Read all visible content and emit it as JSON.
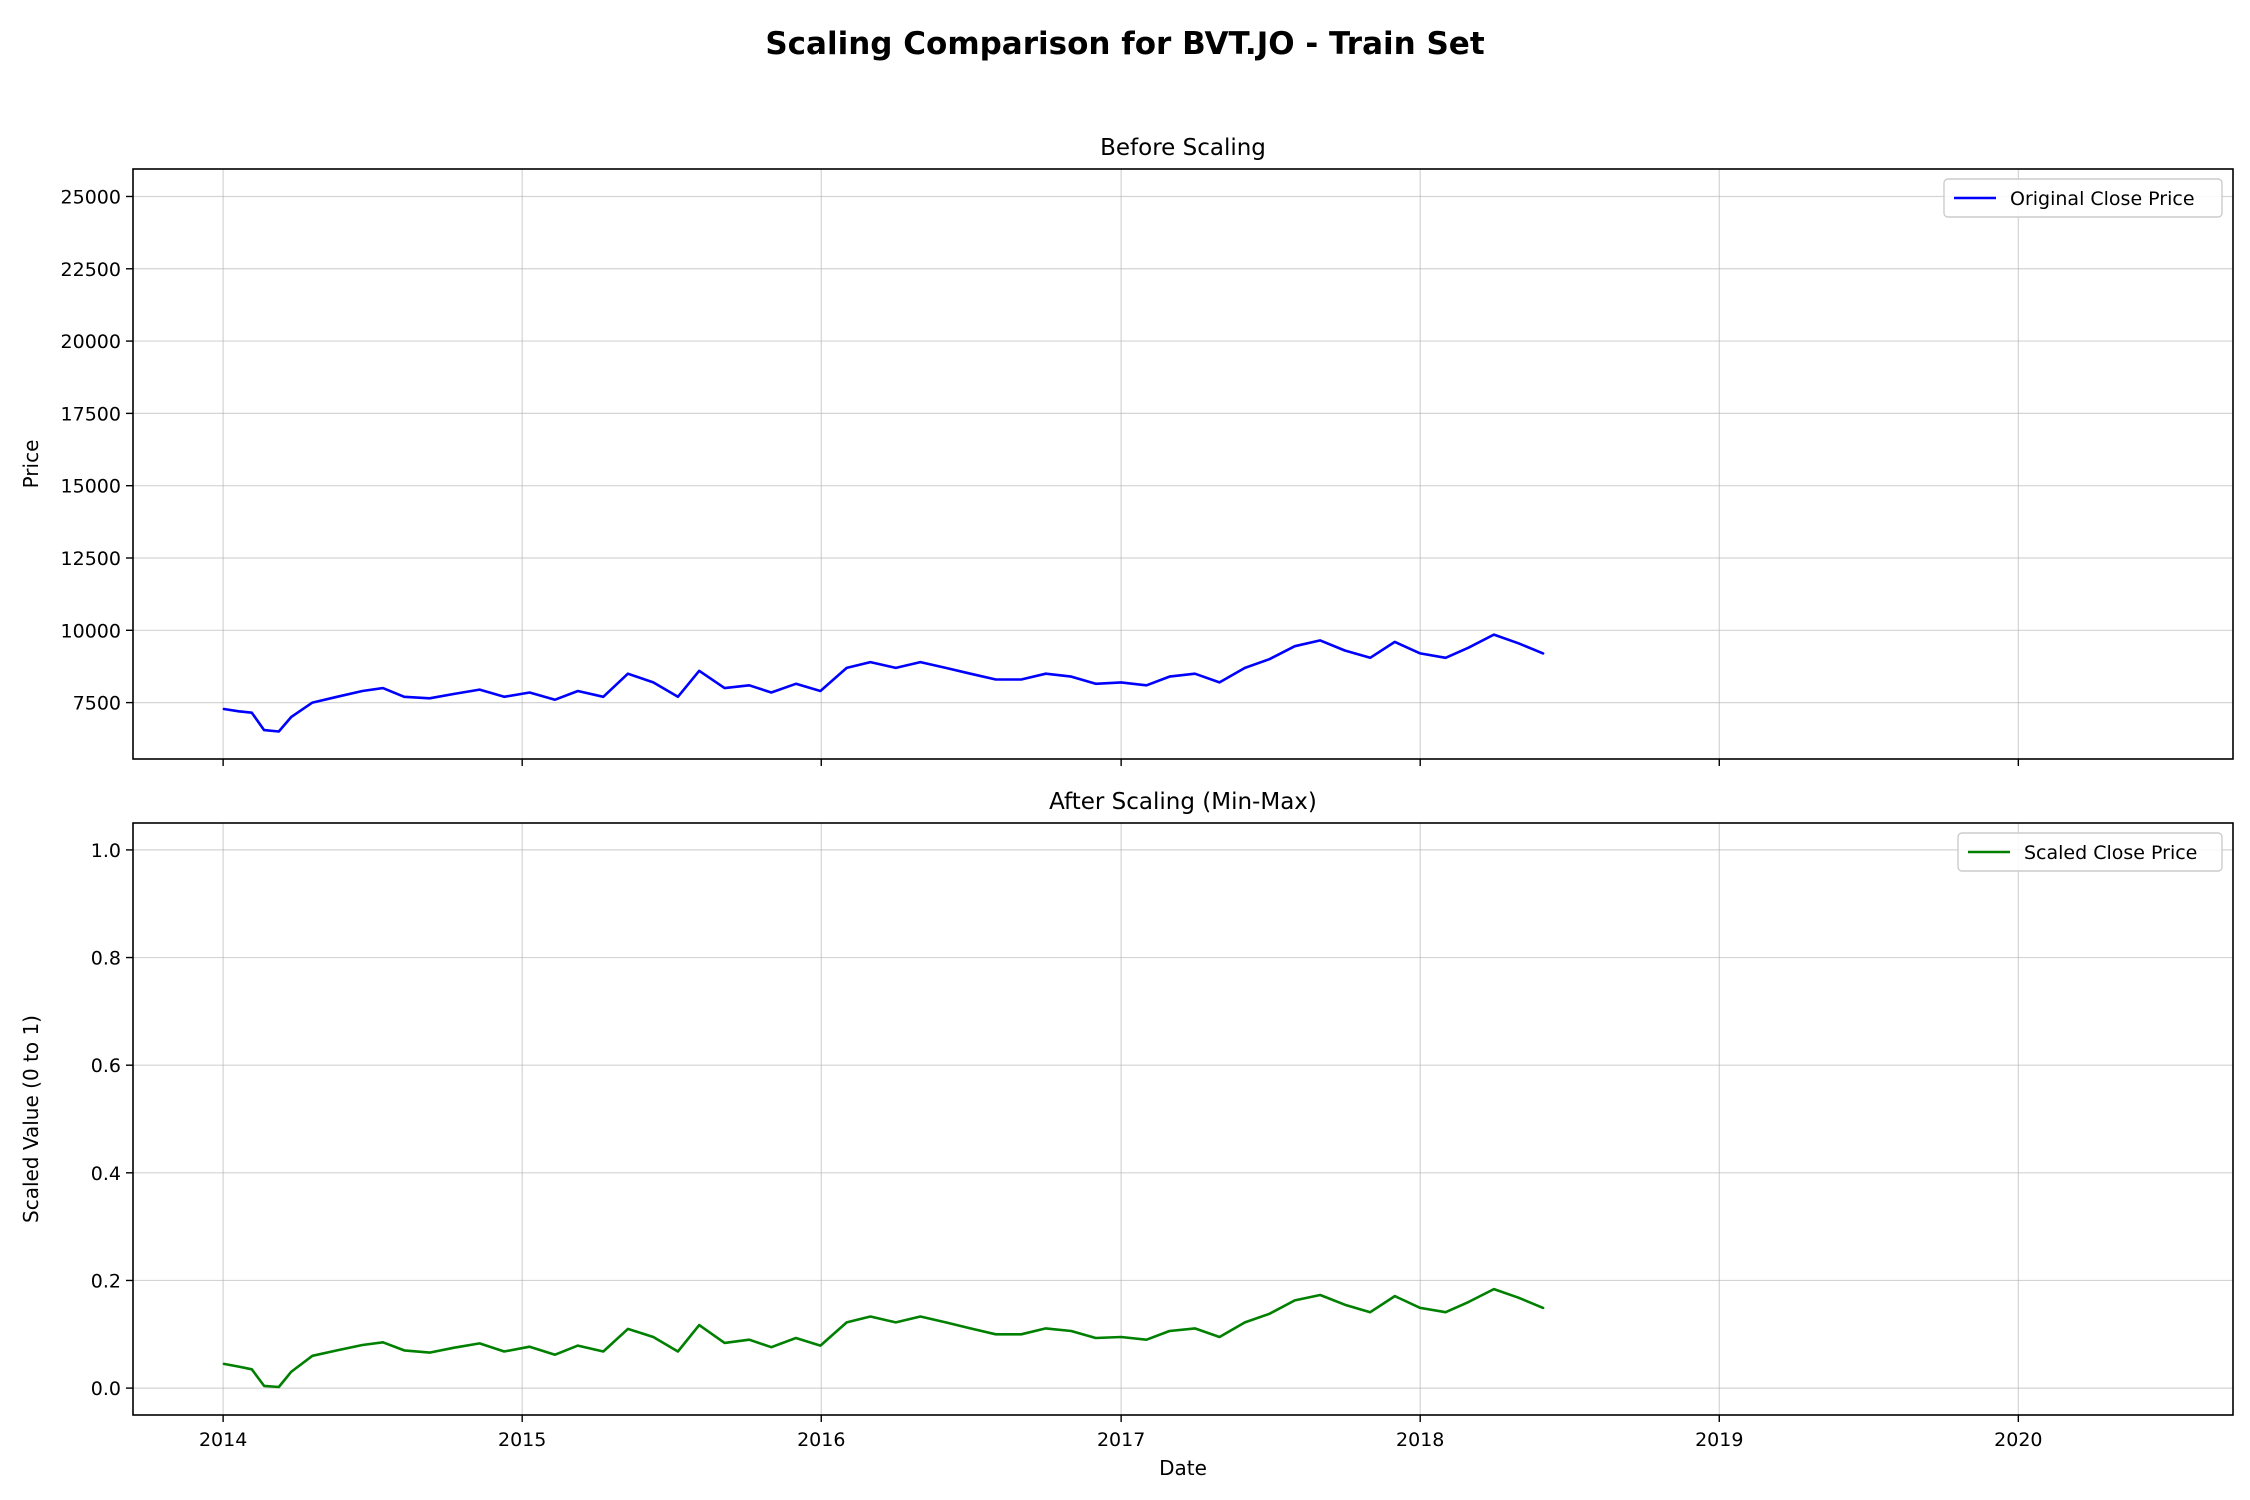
{
  "figure": {
    "suptitle": "Scaling Comparison for BVT.JO - Train Set",
    "xlabel": "Date"
  },
  "chart_data": [
    {
      "type": "line",
      "title": "Before Scaling",
      "xlabel": "",
      "ylabel": "Price",
      "xlim": [
        "2013-09-13",
        "2020-09-19"
      ],
      "ylim": [
        5550,
        25950
      ],
      "x_ticks": [
        "2014",
        "2015",
        "2016",
        "2017",
        "2018",
        "2019",
        "2020"
      ],
      "y_ticks": [
        7500,
        10000,
        12500,
        15000,
        17500,
        20000,
        22500,
        25000
      ],
      "y_tick_labels": [
        "7500",
        "10000",
        "12500",
        "15000",
        "17500",
        "20000",
        "22500",
        "25000"
      ],
      "grid": true,
      "legend_position": "upper right",
      "series": [
        {
          "name": "Original Close Price",
          "color": "#0000ff",
          "points": [
            [
              "2014-01-02",
              7280
            ],
            [
              "2014-01-20",
              7200
            ],
            [
              "2014-02-05",
              7150
            ],
            [
              "2014-02-20",
              6550
            ],
            [
              "2014-03-10",
              6500
            ],
            [
              "2014-03-25",
              7000
            ],
            [
              "2014-04-20",
              7500
            ],
            [
              "2014-05-20",
              7700
            ],
            [
              "2014-06-20",
              7900
            ],
            [
              "2014-07-15",
              8000
            ],
            [
              "2014-08-10",
              7700
            ],
            [
              "2014-09-10",
              7650
            ],
            [
              "2014-10-10",
              7800
            ],
            [
              "2014-11-10",
              7950
            ],
            [
              "2014-12-10",
              7700
            ],
            [
              "2015-01-10",
              7850
            ],
            [
              "2015-02-10",
              7600
            ],
            [
              "2015-03-10",
              7900
            ],
            [
              "2015-04-10",
              7700
            ],
            [
              "2015-05-10",
              8500
            ],
            [
              "2015-06-10",
              8200
            ],
            [
              "2015-07-10",
              7700
            ],
            [
              "2015-08-05",
              8600
            ],
            [
              "2015-09-05",
              8000
            ],
            [
              "2015-10-05",
              8100
            ],
            [
              "2015-11-01",
              7850
            ],
            [
              "2015-12-01",
              8150
            ],
            [
              "2015-12-31",
              7900
            ],
            [
              "2016-02-01",
              8700
            ],
            [
              "2016-03-01",
              8900
            ],
            [
              "2016-04-01",
              8700
            ],
            [
              "2016-05-01",
              8900
            ],
            [
              "2016-06-01",
              8700
            ],
            [
              "2016-07-01",
              8500
            ],
            [
              "2016-08-01",
              8300
            ],
            [
              "2016-09-01",
              8300
            ],
            [
              "2016-10-01",
              8500
            ],
            [
              "2016-11-01",
              8400
            ],
            [
              "2016-12-01",
              8150
            ],
            [
              "2017-01-01",
              8200
            ],
            [
              "2017-02-01",
              8100
            ],
            [
              "2017-03-01",
              8400
            ],
            [
              "2017-04-01",
              8500
            ],
            [
              "2017-05-01",
              8200
            ],
            [
              "2017-06-01",
              8700
            ],
            [
              "2017-07-01",
              9000
            ],
            [
              "2017-08-01",
              9450
            ],
            [
              "2017-09-01",
              9650
            ],
            [
              "2017-10-01",
              9300
            ],
            [
              "2017-11-01",
              9050
            ],
            [
              "2017-12-01",
              9600
            ],
            [
              "2018-01-01",
              9200
            ],
            [
              "2018-02-01",
              9050
            ],
            [
              "2018-03-01",
              9400
            ],
            [
              "2018-04-01",
              9850
            ],
            [
              "2018-05-01",
              9550
            ],
            [
              "2018-05-31",
              9200
            ]
          ]
        }
      ]
    },
    {
      "type": "line",
      "title": "After Scaling (Min-Max)",
      "xlabel": "Date",
      "ylabel": "Scaled Value (0 to 1)",
      "xlim": [
        "2013-09-13",
        "2020-09-19"
      ],
      "ylim": [
        -0.05,
        1.05
      ],
      "x_ticks": [
        "2014",
        "2015",
        "2016",
        "2017",
        "2018",
        "2019",
        "2020"
      ],
      "y_ticks": [
        0.0,
        0.2,
        0.4,
        0.6,
        0.8,
        1.0
      ],
      "y_tick_labels": [
        "0.0",
        "0.2",
        "0.4",
        "0.6",
        "0.8",
        "1.0"
      ],
      "grid": true,
      "legend_position": "upper right",
      "series": [
        {
          "name": "Scaled Close Price",
          "color": "#008000",
          "points": [
            [
              "2014-01-02",
              0.045
            ],
            [
              "2014-01-20",
              0.04
            ],
            [
              "2014-02-05",
              0.035
            ],
            [
              "2014-02-20",
              0.004
            ],
            [
              "2014-03-10",
              0.002
            ],
            [
              "2014-03-25",
              0.03
            ],
            [
              "2014-04-20",
              0.06
            ],
            [
              "2014-05-20",
              0.07
            ],
            [
              "2014-06-20",
              0.08
            ],
            [
              "2014-07-15",
              0.085
            ],
            [
              "2014-08-10",
              0.07
            ],
            [
              "2014-09-10",
              0.066
            ],
            [
              "2014-10-10",
              0.075
            ],
            [
              "2014-11-10",
              0.083
            ],
            [
              "2014-12-10",
              0.068
            ],
            [
              "2015-01-10",
              0.077
            ],
            [
              "2015-02-10",
              0.062
            ],
            [
              "2015-03-10",
              0.079
            ],
            [
              "2015-04-10",
              0.068
            ],
            [
              "2015-05-10",
              0.11
            ],
            [
              "2015-06-10",
              0.095
            ],
            [
              "2015-07-10",
              0.068
            ],
            [
              "2015-08-05",
              0.117
            ],
            [
              "2015-09-05",
              0.084
            ],
            [
              "2015-10-05",
              0.09
            ],
            [
              "2015-11-01",
              0.076
            ],
            [
              "2015-12-01",
              0.093
            ],
            [
              "2015-12-31",
              0.079
            ],
            [
              "2016-02-01",
              0.122
            ],
            [
              "2016-03-01",
              0.133
            ],
            [
              "2016-04-01",
              0.122
            ],
            [
              "2016-05-01",
              0.133
            ],
            [
              "2016-06-01",
              0.122
            ],
            [
              "2016-07-01",
              0.111
            ],
            [
              "2016-08-01",
              0.1
            ],
            [
              "2016-09-01",
              0.1
            ],
            [
              "2016-10-01",
              0.111
            ],
            [
              "2016-11-01",
              0.106
            ],
            [
              "2016-12-01",
              0.093
            ],
            [
              "2017-01-01",
              0.095
            ],
            [
              "2017-02-01",
              0.09
            ],
            [
              "2017-03-01",
              0.106
            ],
            [
              "2017-04-01",
              0.111
            ],
            [
              "2017-05-01",
              0.095
            ],
            [
              "2017-06-01",
              0.122
            ],
            [
              "2017-07-01",
              0.138
            ],
            [
              "2017-08-01",
              0.163
            ],
            [
              "2017-09-01",
              0.173
            ],
            [
              "2017-10-01",
              0.155
            ],
            [
              "2017-11-01",
              0.141
            ],
            [
              "2017-12-01",
              0.171
            ],
            [
              "2018-01-01",
              0.149
            ],
            [
              "2018-02-01",
              0.141
            ],
            [
              "2018-03-01",
              0.16
            ],
            [
              "2018-04-01",
              0.184
            ],
            [
              "2018-05-01",
              0.168
            ],
            [
              "2018-05-31",
              0.149
            ]
          ]
        }
      ]
    }
  ]
}
